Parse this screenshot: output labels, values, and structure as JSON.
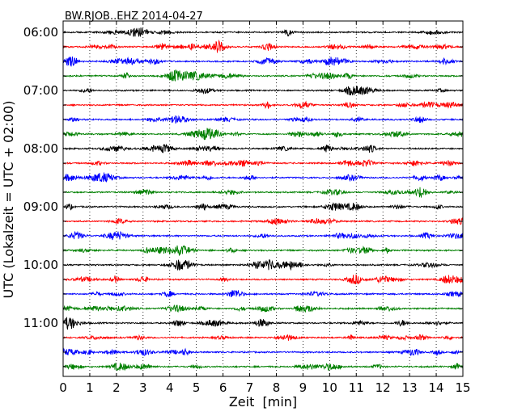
{
  "chart_data": {
    "type": "line",
    "title": "BW.RJOB..EHZ 2014-04-27",
    "xlabel": "Zeit  [min]",
    "ylabel": "UTC (Lokalzeit = UTC + 02:00)",
    "xlim": [
      0,
      15
    ],
    "x_ticks": [
      "0",
      "1",
      "2",
      "3",
      "4",
      "5",
      "6",
      "7",
      "8",
      "9",
      "10",
      "11",
      "12",
      "13",
      "14",
      "15"
    ],
    "y_tick_labels": [
      "06:00",
      "07:00",
      "08:00",
      "09:00",
      "10:00",
      "11:00"
    ],
    "grid": "vertical dotted",
    "interval_minutes": 15,
    "trace_colors": [
      "#000000",
      "#ff0000",
      "#0000ff",
      "#008000"
    ],
    "series": [
      {
        "start": "06:00"
      },
      {
        "start": "06:15"
      },
      {
        "start": "06:30"
      },
      {
        "start": "06:45"
      },
      {
        "start": "07:00"
      },
      {
        "start": "07:15"
      },
      {
        "start": "07:30"
      },
      {
        "start": "07:45"
      },
      {
        "start": "08:00"
      },
      {
        "start": "08:15"
      },
      {
        "start": "08:30"
      },
      {
        "start": "08:45"
      },
      {
        "start": "09:00"
      },
      {
        "start": "09:15"
      },
      {
        "start": "09:30"
      },
      {
        "start": "09:45"
      },
      {
        "start": "10:00"
      },
      {
        "start": "10:15"
      },
      {
        "start": "10:30"
      },
      {
        "start": "10:45"
      },
      {
        "start": "11:00"
      },
      {
        "start": "11:15"
      },
      {
        "start": "11:30"
      },
      {
        "start": "11:45"
      }
    ]
  }
}
